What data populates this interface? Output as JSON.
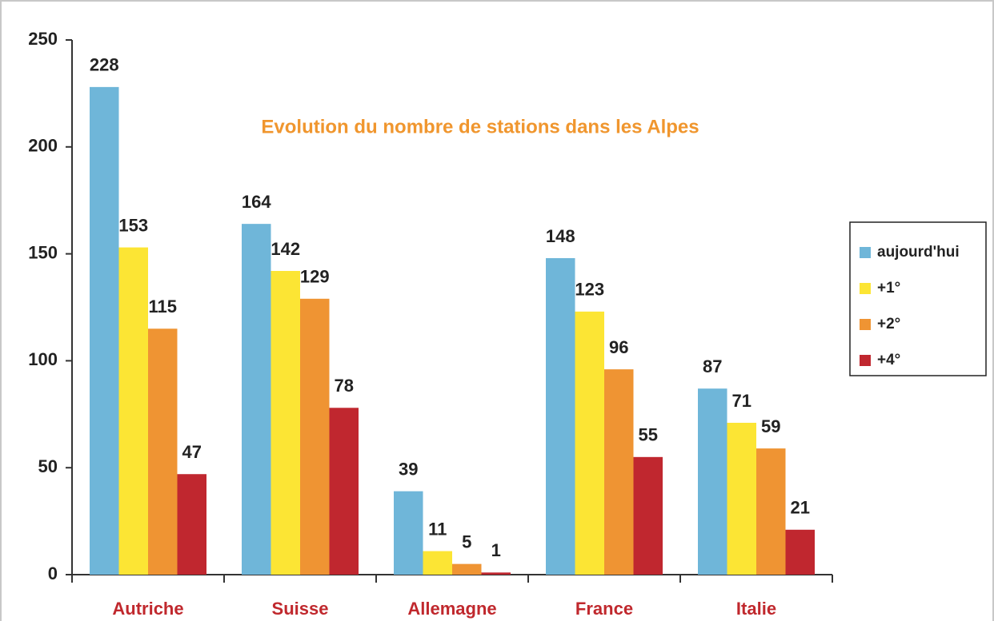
{
  "chart_data": {
    "type": "bar",
    "title": "Evolution du nombre de stations dans les Alpes",
    "categories": [
      "Autriche",
      "Suisse",
      "Allemagne",
      "France",
      "Italie"
    ],
    "series": [
      {
        "name": "aujourd'hui",
        "color": "#6fb6d9",
        "values": [
          228,
          164,
          39,
          148,
          87
        ]
      },
      {
        "name": "+1°",
        "color": "#fce534",
        "values": [
          153,
          142,
          11,
          123,
          71
        ]
      },
      {
        "name": "+2°",
        "color": "#ef9433",
        "values": [
          115,
          129,
          5,
          96,
          59
        ]
      },
      {
        "name": "+4°",
        "color": "#c0272f",
        "values": [
          47,
          78,
          1,
          55,
          21
        ]
      }
    ],
    "ylim": [
      0,
      250
    ],
    "yticks": [
      0,
      50,
      100,
      150,
      200,
      250
    ],
    "legend": "right",
    "grid": false
  }
}
